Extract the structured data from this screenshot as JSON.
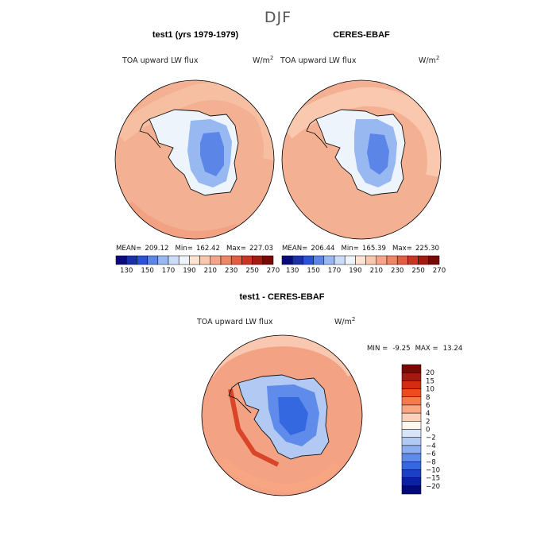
{
  "season": "DJF",
  "chart_data": [
    {
      "type": "heatmap",
      "title": "test1 (yrs 1979-1979)",
      "variable": "TOA upward LW flux",
      "units": "W/m",
      "units_exp": "2",
      "mean_label": "MEAN=",
      "mean": "209.12",
      "min_label": "Min=",
      "min": "162.42",
      "max_label": "Max=",
      "max": "227.03",
      "levels": [
        130,
        150,
        170,
        190,
        210,
        230,
        250,
        270
      ],
      "projection": "south polar stereographic"
    },
    {
      "type": "heatmap",
      "title": "CERES-EBAF",
      "variable": "TOA upward LW flux",
      "units": "W/m",
      "units_exp": "2",
      "mean_label": "MEAN=",
      "mean": "206.44",
      "min_label": "Min=",
      "min": "165.39",
      "max_label": "Max=",
      "max": "225.30",
      "levels": [
        130,
        150,
        170,
        190,
        210,
        230,
        250,
        270
      ],
      "projection": "south polar stereographic"
    },
    {
      "type": "heatmap",
      "title": "test1 - CERES-EBAF",
      "variable": "TOA upward LW flux",
      "units": "W/m",
      "units_exp": "2",
      "min_label": "MIN =",
      "min": "-9.25",
      "max_label": "MAX =",
      "max": "13.24",
      "levels": [
        "20",
        "15",
        "10",
        "8",
        "6",
        "4",
        "2",
        "0",
        "−2",
        "−4",
        "−6",
        "−8",
        "−10",
        "−15",
        "−20"
      ],
      "projection": "south polar stereographic"
    }
  ],
  "colors": {
    "abs_cmap": [
      "#0a0a80",
      "#1a2fb0",
      "#2a52d8",
      "#5b86e8",
      "#98b8f2",
      "#cadcf8",
      "#eef4fb",
      "#fde4d2",
      "#fbc7ac",
      "#f6a588",
      "#ef8566",
      "#e55c45",
      "#cc3322",
      "#a51a10",
      "#7a0905"
    ],
    "diff_cmap": [
      "#7a0905",
      "#a51a10",
      "#d32c12",
      "#f04a20",
      "#f57a50",
      "#f9a681",
      "#fbd1bb",
      "#fff6ee",
      "#d8e4f8",
      "#b1c9f3",
      "#8aaef0",
      "#5f8ceb",
      "#3468e0",
      "#1c3fc7",
      "#0b20a3",
      "#020a78"
    ],
    "ocean_abs": "#f4b092",
    "ocean_diff": "#f3a384"
  }
}
